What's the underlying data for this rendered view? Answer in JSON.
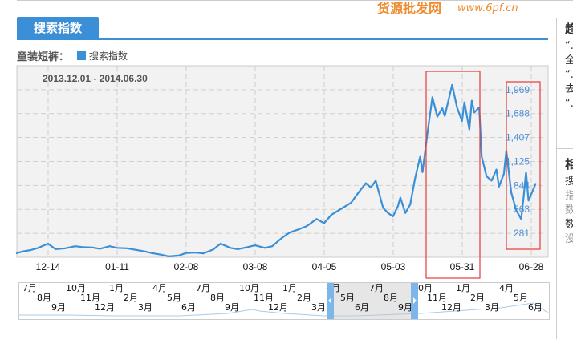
{
  "tab": {
    "label": "搜索指数"
  },
  "legend": {
    "keyword": "童装短裤：",
    "series": "搜索指数"
  },
  "right_panel": {
    "fragments": [
      "趋",
      "“..",
      "全",
      "“..",
      "去",
      "“..",
      "相",
      "搜",
      "指",
      "数",
      "数",
      "没"
    ]
  },
  "watermark": {
    "text": "货源批发网",
    "url": "www.6pf.cn"
  },
  "navigator": {
    "labels": [
      "7月",
      "8月",
      "9月",
      "10月",
      "11月",
      "12月",
      "1月",
      "2月",
      "3月",
      "4月",
      "5月",
      "6月",
      "7月",
      "8月",
      "9月",
      "10月",
      "11月",
      "12月",
      "1月",
      "2月",
      "3月",
      "4月",
      "5月",
      "6月",
      "7月",
      "8月",
      "9月",
      "10月",
      "11月",
      "12月",
      "1月",
      "2月",
      "3月",
      "4月",
      "5月",
      "6月"
    ]
  },
  "chart_data": {
    "type": "line",
    "title": "2013.12.01 - 2014.06.30",
    "colors": {
      "line": "#3a8fd6",
      "annotation": "#e83a3a",
      "plot_bg": "#f2f2f2"
    },
    "x_ticks": [
      "12-14",
      "01-11",
      "02-08",
      "03-08",
      "04-05",
      "05-03",
      "05-31",
      "06-28"
    ],
    "y_ticks": [
      "281",
      "563",
      "844",
      "1,125",
      "1,407",
      "1,688",
      "1,969"
    ],
    "ylim": [
      0,
      2250
    ],
    "grid": true,
    "series": [
      {
        "name": "搜索指数",
        "points": [
          [
            "2013-12-01",
            47
          ],
          [
            "2013-12-04",
            70
          ],
          [
            "2013-12-07",
            85
          ],
          [
            "2013-12-10",
            110
          ],
          [
            "2013-12-14",
            160
          ],
          [
            "2013-12-17",
            95
          ],
          [
            "2013-12-21",
            105
          ],
          [
            "2013-12-25",
            130
          ],
          [
            "2013-12-28",
            120
          ],
          [
            "2014-01-01",
            115
          ],
          [
            "2014-01-04",
            100
          ],
          [
            "2014-01-08",
            130
          ],
          [
            "2014-01-11",
            110
          ],
          [
            "2014-01-15",
            105
          ],
          [
            "2014-01-18",
            90
          ],
          [
            "2014-01-22",
            70
          ],
          [
            "2014-01-25",
            50
          ],
          [
            "2014-01-29",
            30
          ],
          [
            "2014-02-01",
            10
          ],
          [
            "2014-02-05",
            20
          ],
          [
            "2014-02-08",
            50
          ],
          [
            "2014-02-12",
            55
          ],
          [
            "2014-02-15",
            45
          ],
          [
            "2014-02-19",
            90
          ],
          [
            "2014-02-22",
            160
          ],
          [
            "2014-02-26",
            110
          ],
          [
            "2014-03-01",
            95
          ],
          [
            "2014-03-05",
            120
          ],
          [
            "2014-03-08",
            140
          ],
          [
            "2014-03-12",
            110
          ],
          [
            "2014-03-15",
            130
          ],
          [
            "2014-03-19",
            230
          ],
          [
            "2014-03-22",
            290
          ],
          [
            "2014-03-26",
            330
          ],
          [
            "2014-03-29",
            366
          ],
          [
            "2014-04-02",
            450
          ],
          [
            "2014-04-05",
            400
          ],
          [
            "2014-04-08",
            500
          ],
          [
            "2014-04-12",
            570
          ],
          [
            "2014-04-16",
            640
          ],
          [
            "2014-04-19",
            760
          ],
          [
            "2014-04-22",
            870
          ],
          [
            "2014-04-24",
            820
          ],
          [
            "2014-04-26",
            900
          ],
          [
            "2014-04-29",
            580
          ],
          [
            "2014-05-01",
            520
          ],
          [
            "2014-05-03",
            480
          ],
          [
            "2014-05-05",
            600
          ],
          [
            "2014-05-06",
            700
          ],
          [
            "2014-05-08",
            520
          ],
          [
            "2014-05-10",
            620
          ],
          [
            "2014-05-12",
            930
          ],
          [
            "2014-05-14",
            1180
          ],
          [
            "2014-05-15",
            1000
          ],
          [
            "2014-05-17",
            1460
          ],
          [
            "2014-05-19",
            1880
          ],
          [
            "2014-05-21",
            1650
          ],
          [
            "2014-05-23",
            1750
          ],
          [
            "2014-05-24",
            1660
          ],
          [
            "2014-05-27",
            2025
          ],
          [
            "2014-05-29",
            1760
          ],
          [
            "2014-05-31",
            1600
          ],
          [
            "2014-06-01",
            1820
          ],
          [
            "2014-06-03",
            1500
          ],
          [
            "2014-06-04",
            1840
          ],
          [
            "2014-06-05",
            1700
          ],
          [
            "2014-06-07",
            1760
          ],
          [
            "2014-06-08",
            1180
          ],
          [
            "2014-06-10",
            950
          ],
          [
            "2014-06-12",
            900
          ],
          [
            "2014-06-14",
            1030
          ],
          [
            "2014-06-15",
            830
          ],
          [
            "2014-06-17",
            980
          ],
          [
            "2014-06-18",
            1250
          ],
          [
            "2014-06-20",
            760
          ],
          [
            "2014-06-22",
            553
          ],
          [
            "2014-06-24",
            450
          ],
          [
            "2014-06-25",
            700
          ],
          [
            "2014-06-26",
            1000
          ],
          [
            "2014-06-27",
            666
          ],
          [
            "2014-06-30",
            870
          ]
        ]
      }
    ]
  }
}
